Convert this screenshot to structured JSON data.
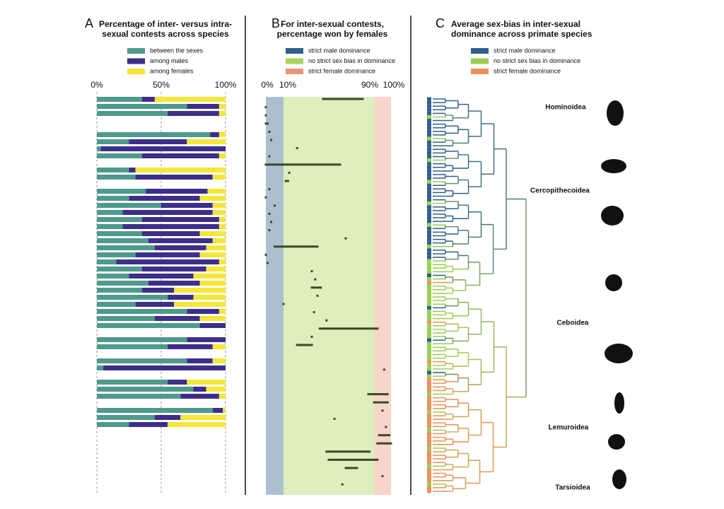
{
  "chart_data": [
    {
      "type": "stacked-bar",
      "label": "A",
      "title": [
        "Percentage of inter- versus intra-",
        "sexual contests across species"
      ],
      "xlim": [
        0,
        100
      ],
      "xticks": [
        {
          "value": 0,
          "label": "0%"
        },
        {
          "value": 50,
          "label": "50%"
        },
        {
          "value": 100,
          "label": "100%"
        }
      ],
      "grid": true,
      "categories": [
        null,
        null,
        null,
        null,
        null,
        null,
        null,
        null,
        null,
        null,
        null,
        null,
        null,
        null,
        null,
        null,
        null,
        null,
        null,
        null,
        null,
        null,
        null,
        null,
        null,
        null,
        null,
        null,
        null,
        null,
        null,
        null,
        null,
        null,
        null,
        null,
        null,
        null,
        null,
        null,
        null,
        null,
        null,
        null,
        null,
        null,
        null,
        null
      ],
      "series": [
        {
          "name": "between the sexes",
          "color": "#4f9a8c",
          "values": [
            35,
            70,
            55,
            null,
            null,
            88,
            25,
            3,
            35,
            null,
            25,
            30,
            null,
            38,
            25,
            50,
            20,
            35,
            20,
            35,
            40,
            45,
            30,
            15,
            35,
            25,
            40,
            35,
            55,
            30,
            70,
            45,
            80,
            null,
            70,
            55,
            null,
            70,
            5,
            null,
            55,
            75,
            65,
            null,
            90,
            45,
            25,
            null
          ]
        },
        {
          "name": "among males",
          "color": "#3b2f8a",
          "values": [
            10,
            25,
            40,
            null,
            null,
            7,
            45,
            97,
            60,
            null,
            5,
            60,
            null,
            48,
            55,
            40,
            70,
            60,
            75,
            45,
            50,
            40,
            50,
            80,
            50,
            50,
            40,
            25,
            20,
            30,
            25,
            35,
            20,
            null,
            30,
            35,
            null,
            20,
            95,
            null,
            15,
            10,
            30,
            null,
            8,
            20,
            30,
            null
          ]
        },
        {
          "name": "among females",
          "color": "#f4e63a",
          "values": [
            55,
            5,
            5,
            null,
            null,
            5,
            30,
            0,
            5,
            null,
            70,
            10,
            null,
            14,
            20,
            10,
            10,
            5,
            5,
            20,
            10,
            15,
            20,
            5,
            15,
            25,
            20,
            40,
            25,
            40,
            5,
            20,
            0,
            null,
            0,
            10,
            null,
            10,
            0,
            null,
            30,
            15,
            5,
            null,
            2,
            35,
            45,
            null
          ]
        }
      ]
    },
    {
      "type": "range",
      "label": "B",
      "title": [
        "For inter-sexual contests,",
        "percentage won by females"
      ],
      "xlim": [
        0,
        100
      ],
      "xticks": [
        {
          "value": 0,
          "label": "0%"
        },
        {
          "value": 10,
          "label": "10%"
        },
        {
          "value": 90,
          "label": "90%"
        },
        {
          "value": 100,
          "label": "100%"
        }
      ],
      "categories": [
        null,
        null,
        null,
        null,
        null,
        null,
        null,
        null,
        null,
        null,
        null,
        null,
        null,
        null,
        null,
        null,
        null,
        null,
        null,
        null,
        null,
        null,
        null,
        null,
        null,
        null,
        null,
        null,
        null,
        null,
        null,
        null,
        null,
        null,
        null,
        null,
        null,
        null,
        null,
        null,
        null,
        null,
        null,
        null,
        null,
        null,
        null,
        null
      ],
      "low": [
        45,
        0,
        0,
        0,
        2,
        3,
        22,
        2,
        0,
        15,
        12,
        2,
        0,
        5,
        2,
        3,
        2,
        65,
        5,
        0,
        1,
        35,
        38,
        35,
        40,
        10,
        37,
        48,
        42,
        35,
        22,
        null,
        null,
        96,
        null,
        null,
        85,
        90,
        95,
        55,
        97,
        93,
        92,
        48,
        50,
        65,
        95,
        62
      ],
      "high": [
        80,
        0,
        0,
        1,
        2,
        3,
        22,
        2,
        60,
        15,
        14,
        2,
        0,
        5,
        2,
        3,
        2,
        65,
        40,
        0,
        1,
        35,
        38,
        43,
        40,
        10,
        37,
        48,
        92,
        35,
        35,
        null,
        null,
        96,
        null,
        null,
        98,
        98,
        95,
        55,
        97,
        99,
        100,
        86,
        92,
        75,
        95,
        62
      ],
      "color": "#3a4a22",
      "series": [
        {
          "name": "strict male dominance",
          "color": "#2f5f8a",
          "range": [
            0,
            10
          ]
        },
        {
          "name": "no strict sex bias in dominance",
          "color": "#a8d65a",
          "range": [
            10,
            90
          ]
        },
        {
          "name": "strict female dominance",
          "color": "#e8957a",
          "range": [
            90,
            100
          ]
        }
      ]
    },
    {
      "type": "dendrogram",
      "label": "C",
      "title": [
        "Average sex-bias in inter-sexual",
        "dominance across primate species"
      ],
      "series": [
        {
          "name": "strict male dominance",
          "color": "#2f5f8a"
        },
        {
          "name": "no strict sex bias in dominance",
          "color": "#9acd52"
        },
        {
          "name": "strict female dominance",
          "color": "#e8925a"
        }
      ],
      "clades": [
        "Hominoidea",
        "Cercopithecoidea",
        "Ceboidea",
        "Lemuroidea",
        "Tarsioidea"
      ]
    }
  ]
}
